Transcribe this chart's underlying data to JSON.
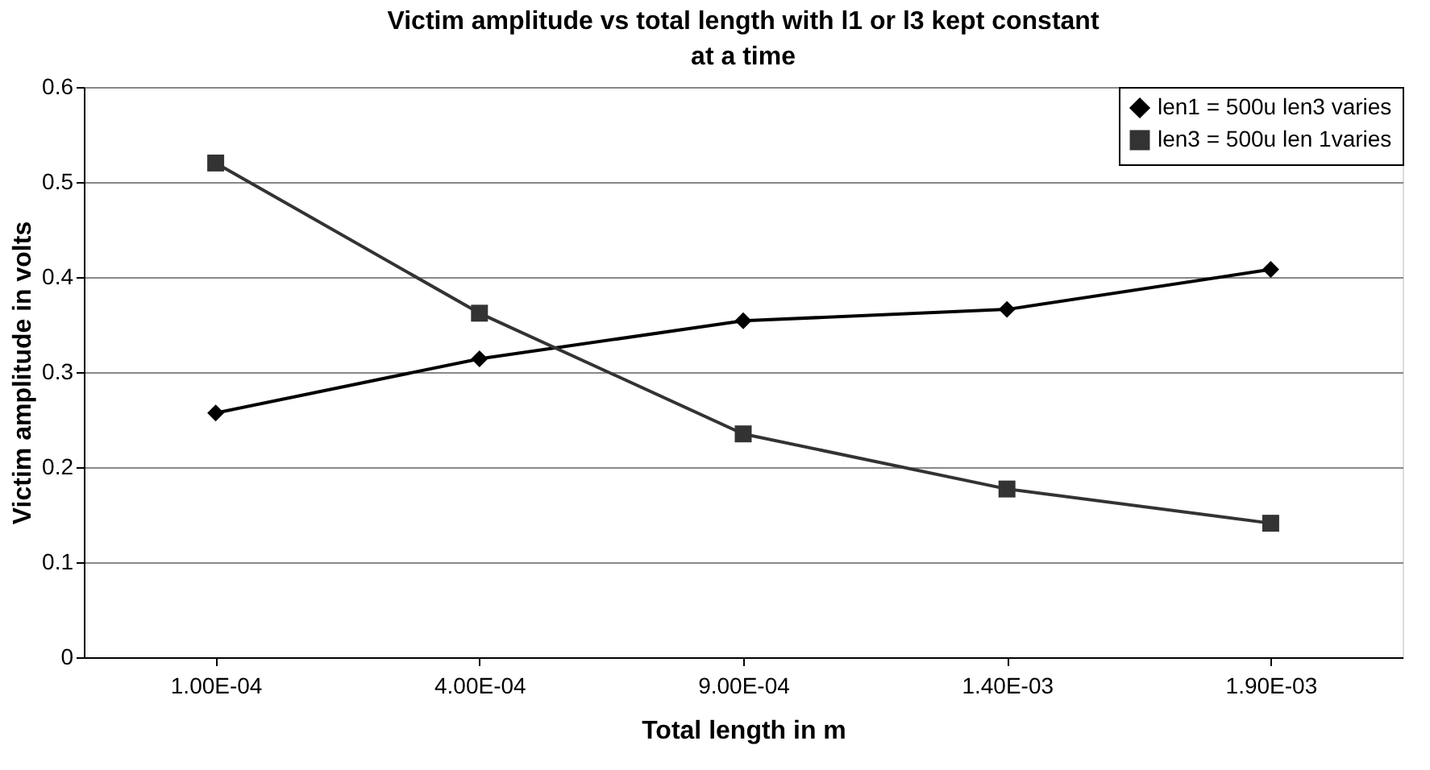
{
  "chart_data": {
    "type": "line",
    "title": "Victim amplitude vs total length with l1 or l3 kept constant at a time",
    "xlabel": "Total length in m",
    "ylabel": "Victim amplitude in volts",
    "categories": [
      "1.00E-04",
      "4.00E-04",
      "9.00E-04",
      "1.40E-03",
      "1.90E-03"
    ],
    "series": [
      {
        "name": "len1 = 500u len3 varies",
        "color": "#000000",
        "marker": "diamond",
        "values": [
          0.257,
          0.314,
          0.354,
          0.366,
          0.408
        ]
      },
      {
        "name": "len3 = 500u len 1varies",
        "color": "#333333",
        "marker": "square",
        "values": [
          0.52,
          0.362,
          0.235,
          0.177,
          0.141
        ]
      }
    ],
    "ylim": [
      0,
      0.6
    ],
    "yticks": [
      0,
      0.1,
      0.2,
      0.3,
      0.4,
      0.5,
      0.6
    ],
    "grid": "y",
    "legend": "top right"
  }
}
